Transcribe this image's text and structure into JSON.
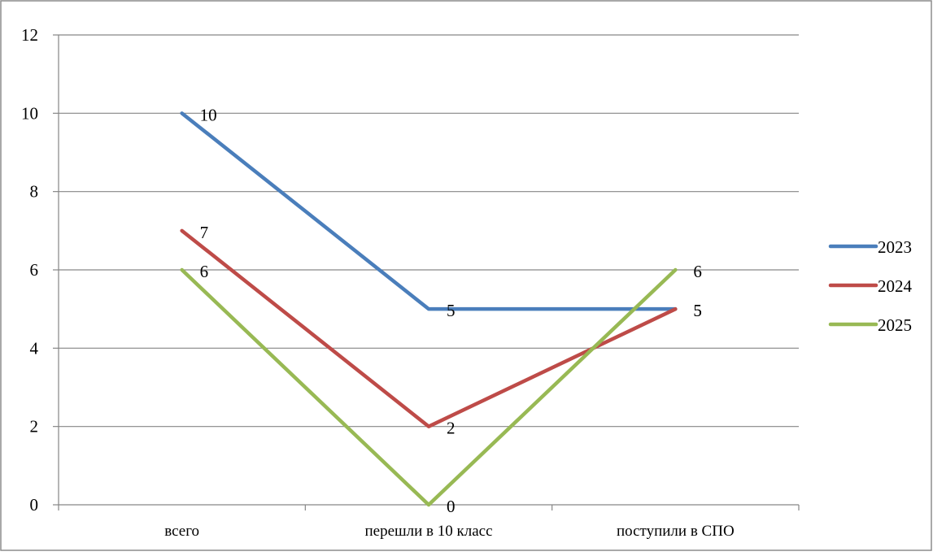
{
  "chart_data": {
    "type": "line",
    "title": "",
    "xlabel": "",
    "ylabel": "",
    "categories": [
      "всего",
      "перешли в 10 класс",
      "поступили в СПО"
    ],
    "ylim": [
      0,
      12
    ],
    "y_ticks": [
      0,
      2,
      4,
      6,
      8,
      10,
      12
    ],
    "y_tick_labels": [
      "0",
      "2",
      "4",
      "6",
      "8",
      "10",
      "12"
    ],
    "grid": true,
    "legend_position": "right",
    "series": [
      {
        "name": "2023",
        "color": "#4a7ebb",
        "values": [
          10,
          5,
          5
        ],
        "labels": [
          "10",
          "5",
          "5"
        ]
      },
      {
        "name": "2024",
        "color": "#be4b48",
        "values": [
          7,
          2,
          5
        ],
        "labels": [
          "7",
          "2",
          "5"
        ]
      },
      {
        "name": "2025",
        "color": "#98b954",
        "values": [
          6,
          0,
          6
        ],
        "labels": [
          "6",
          "0",
          "6"
        ]
      }
    ]
  }
}
